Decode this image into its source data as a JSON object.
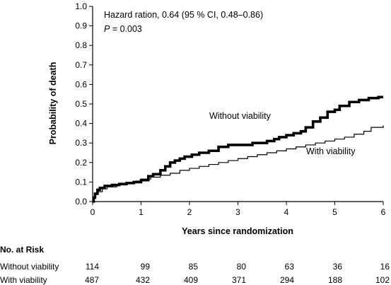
{
  "chart_data": {
    "type": "line",
    "xlabel": "Years since randomization",
    "ylabel": "Probability of death",
    "xlim": [
      0,
      6
    ],
    "ylim": [
      0,
      1.0
    ],
    "xticks": [
      "0",
      "1",
      "2",
      "3",
      "4",
      "5",
      "6"
    ],
    "yticks": [
      "0.0",
      "0.1",
      "0.2",
      "0.3",
      "0.4",
      "0.5",
      "0.6",
      "0.7",
      "0.8",
      "0.9",
      "1.0"
    ],
    "grid": false,
    "annotations": {
      "hazard": "Hazard ration, 0.64 (95 % CI, 0.48–0.86)",
      "p_label": "P",
      "p_value": " = 0.003"
    },
    "series": [
      {
        "name": "Without viability",
        "color": "#000000",
        "line": "thick",
        "x": [
          0,
          0.02,
          0.05,
          0.1,
          0.15,
          0.25,
          0.4,
          0.55,
          0.7,
          0.85,
          1.0,
          1.15,
          1.25,
          1.4,
          1.5,
          1.6,
          1.7,
          1.8,
          1.9,
          2.05,
          2.2,
          2.4,
          2.6,
          2.8,
          3.0,
          3.3,
          3.6,
          3.75,
          3.85,
          4.0,
          4.15,
          4.3,
          4.4,
          4.55,
          4.7,
          4.85,
          5.0,
          5.1,
          5.3,
          5.5,
          5.7,
          5.9,
          6.0
        ],
        "y": [
          0,
          0.02,
          0.04,
          0.06,
          0.07,
          0.08,
          0.085,
          0.09,
          0.095,
          0.1,
          0.11,
          0.13,
          0.14,
          0.16,
          0.18,
          0.2,
          0.21,
          0.22,
          0.23,
          0.24,
          0.25,
          0.26,
          0.28,
          0.29,
          0.29,
          0.3,
          0.31,
          0.32,
          0.33,
          0.34,
          0.35,
          0.36,
          0.38,
          0.41,
          0.43,
          0.46,
          0.47,
          0.49,
          0.51,
          0.52,
          0.53,
          0.535,
          0.535
        ]
      },
      {
        "name": "With viability",
        "color": "#000000",
        "line": "thin",
        "x": [
          0,
          0.03,
          0.06,
          0.1,
          0.2,
          0.3,
          0.5,
          0.7,
          0.9,
          1.0,
          1.2,
          1.4,
          1.6,
          1.8,
          2.0,
          2.2,
          2.4,
          2.6,
          2.8,
          3.0,
          3.2,
          3.4,
          3.6,
          3.8,
          4.0,
          4.2,
          4.4,
          4.6,
          4.8,
          5.0,
          5.2,
          5.4,
          5.6,
          5.75,
          6.0
        ],
        "y": [
          0,
          0.02,
          0.04,
          0.05,
          0.065,
          0.075,
          0.085,
          0.095,
          0.105,
          0.115,
          0.125,
          0.135,
          0.145,
          0.16,
          0.17,
          0.18,
          0.19,
          0.2,
          0.21,
          0.22,
          0.23,
          0.24,
          0.25,
          0.26,
          0.27,
          0.28,
          0.29,
          0.3,
          0.31,
          0.32,
          0.33,
          0.345,
          0.36,
          0.38,
          0.39
        ]
      }
    ],
    "risk_table": {
      "title": "No. at Risk",
      "rows": [
        {
          "label": "Without viability",
          "values": [
            "114",
            "99",
            "85",
            "80",
            "63",
            "36",
            "16"
          ]
        },
        {
          "label": "With viability",
          "values": [
            "487",
            "432",
            "409",
            "371",
            "294",
            "188",
            "102"
          ]
        }
      ]
    }
  }
}
